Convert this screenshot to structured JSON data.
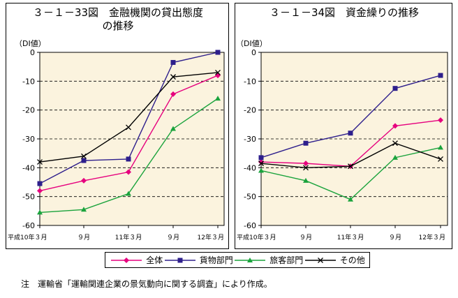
{
  "chart_data": [
    {
      "type": "line",
      "title": "３－１－33図　金融機関の貸出態度\nの推移",
      "ylabel": "（DI値）",
      "categories": [
        "平成10年３月",
        "９月",
        "11年３月",
        "９月",
        "12年３月"
      ],
      "ylim": [
        -60,
        0
      ],
      "yticks": [
        0,
        -10,
        -20,
        -30,
        -40,
        -50,
        -60
      ],
      "gridlines": "dashed horizontal",
      "series": [
        {
          "name": "全体",
          "values": [
            -48,
            -44.5,
            -41.5,
            -14.5,
            -8
          ]
        },
        {
          "name": "貨物部門",
          "values": [
            -45.5,
            -37.5,
            -37,
            -3.5,
            0
          ]
        },
        {
          "name": "旅客部門",
          "values": [
            -55.5,
            -54.5,
            -49,
            -26.5,
            -16
          ]
        },
        {
          "name": "その他",
          "values": [
            -38,
            -36,
            -26,
            -8.5,
            -7
          ]
        }
      ]
    },
    {
      "type": "line",
      "title": "３－１－34図　資金繰りの推移",
      "ylabel": "（DI値）",
      "categories": [
        "平成10年３月",
        "９月",
        "11年３月",
        "９月",
        "12年３月"
      ],
      "ylim": [
        -60,
        0
      ],
      "yticks": [
        0,
        -10,
        -20,
        -30,
        -40,
        -50,
        -60
      ],
      "gridlines": "dashed horizontal",
      "series": [
        {
          "name": "全体",
          "values": [
            -38,
            -38.5,
            -39.5,
            -25.5,
            -23.5
          ]
        },
        {
          "name": "貨物部門",
          "values": [
            -36.5,
            -31.5,
            -28,
            -12.5,
            -8
          ]
        },
        {
          "name": "旅客部門",
          "values": [
            -41,
            -44.5,
            -51,
            -36.5,
            -33
          ]
        },
        {
          "name": "その他",
          "values": [
            -38.5,
            -40,
            -39.5,
            -31.5,
            -37
          ]
        }
      ]
    }
  ],
  "series_style": [
    {
      "name": "全体",
      "color": "#e6007e",
      "marker": "diamond"
    },
    {
      "name": "貨物部門",
      "color": "#2e1f8c",
      "marker": "square"
    },
    {
      "name": "旅客部門",
      "color": "#1aa33c",
      "marker": "triangle"
    },
    {
      "name": "その他",
      "color": "#000000",
      "marker": "x"
    }
  ],
  "colors": {
    "plot_bg": "#fbf3de",
    "grid": "#000000"
  },
  "legend": {
    "items": [
      "全体",
      "貨物部門",
      "旅客部門",
      "その他"
    ]
  },
  "note": "注　運輸省「運輸関連企業の景気動向に関する調査」により作成。"
}
